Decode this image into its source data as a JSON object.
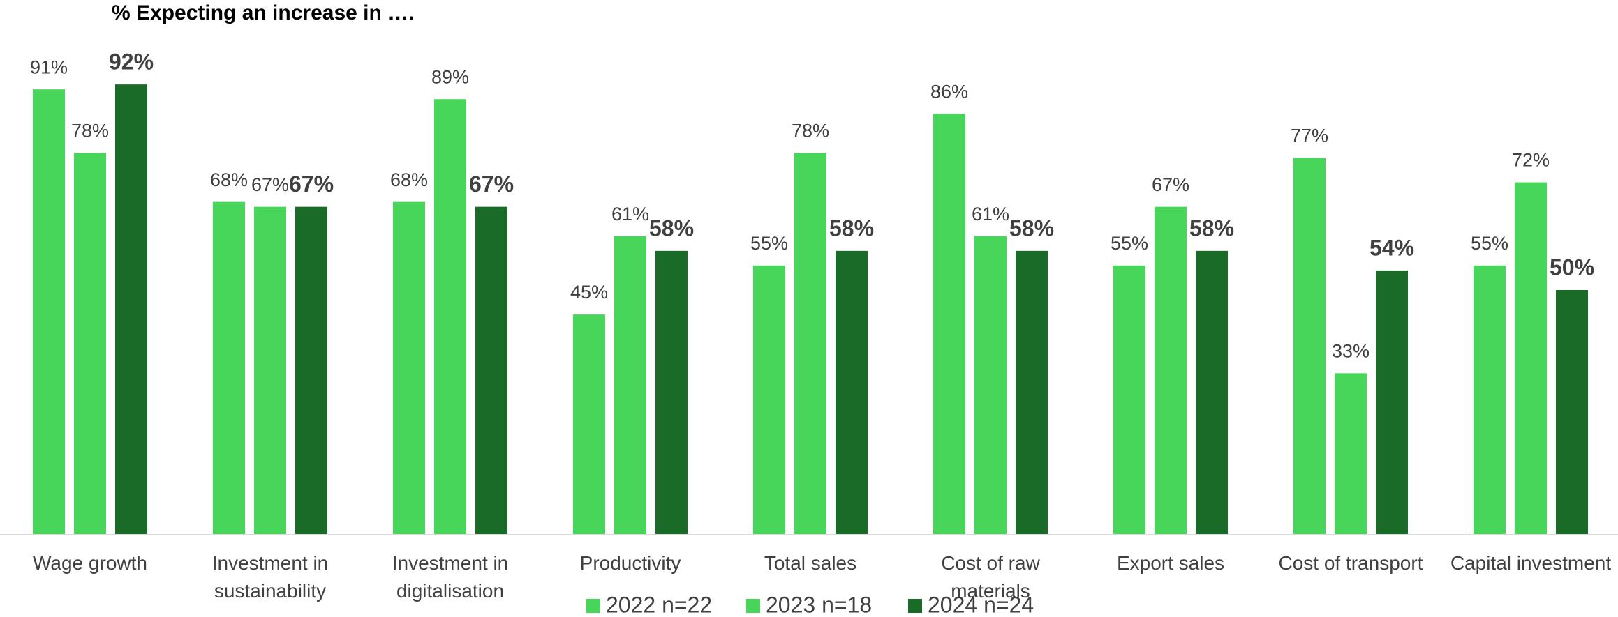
{
  "chart_data": {
    "type": "bar",
    "title": "% Expecting an increase in ….",
    "categories": [
      "Wage growth",
      "Investment in sustainability",
      "Investment in digitalisation",
      "Productivity",
      "Total sales",
      "Cost of raw materials",
      "Export sales",
      "Cost of transport",
      "Capital investment"
    ],
    "series": [
      {
        "name": "2022 n=22",
        "color": "#47d65a",
        "values": [
          91,
          68,
          68,
          45,
          55,
          86,
          55,
          77,
          55
        ],
        "value_labels": [
          "91%",
          "68%",
          "68%",
          "45%",
          "55%",
          "86%",
          "55%",
          "77%",
          "55%"
        ]
      },
      {
        "name": "2023 n=18",
        "color": "#47d65a",
        "values": [
          78,
          67,
          89,
          61,
          78,
          61,
          67,
          33,
          72
        ],
        "value_labels": [
          "78%",
          "67%",
          "89%",
          "61%",
          "78%",
          "61%",
          "67%",
          "33%",
          "72%"
        ]
      },
      {
        "name": "2024 n=24",
        "color": "#1a6b28",
        "values": [
          92,
          67,
          67,
          58,
          58,
          58,
          58,
          54,
          50
        ],
        "value_labels": [
          "92%",
          "67%",
          "67%",
          "58%",
          "58%",
          "58%",
          "58%",
          "54%",
          "50%"
        ]
      }
    ],
    "ylim": [
      0,
      100
    ],
    "legend": "bottom"
  }
}
